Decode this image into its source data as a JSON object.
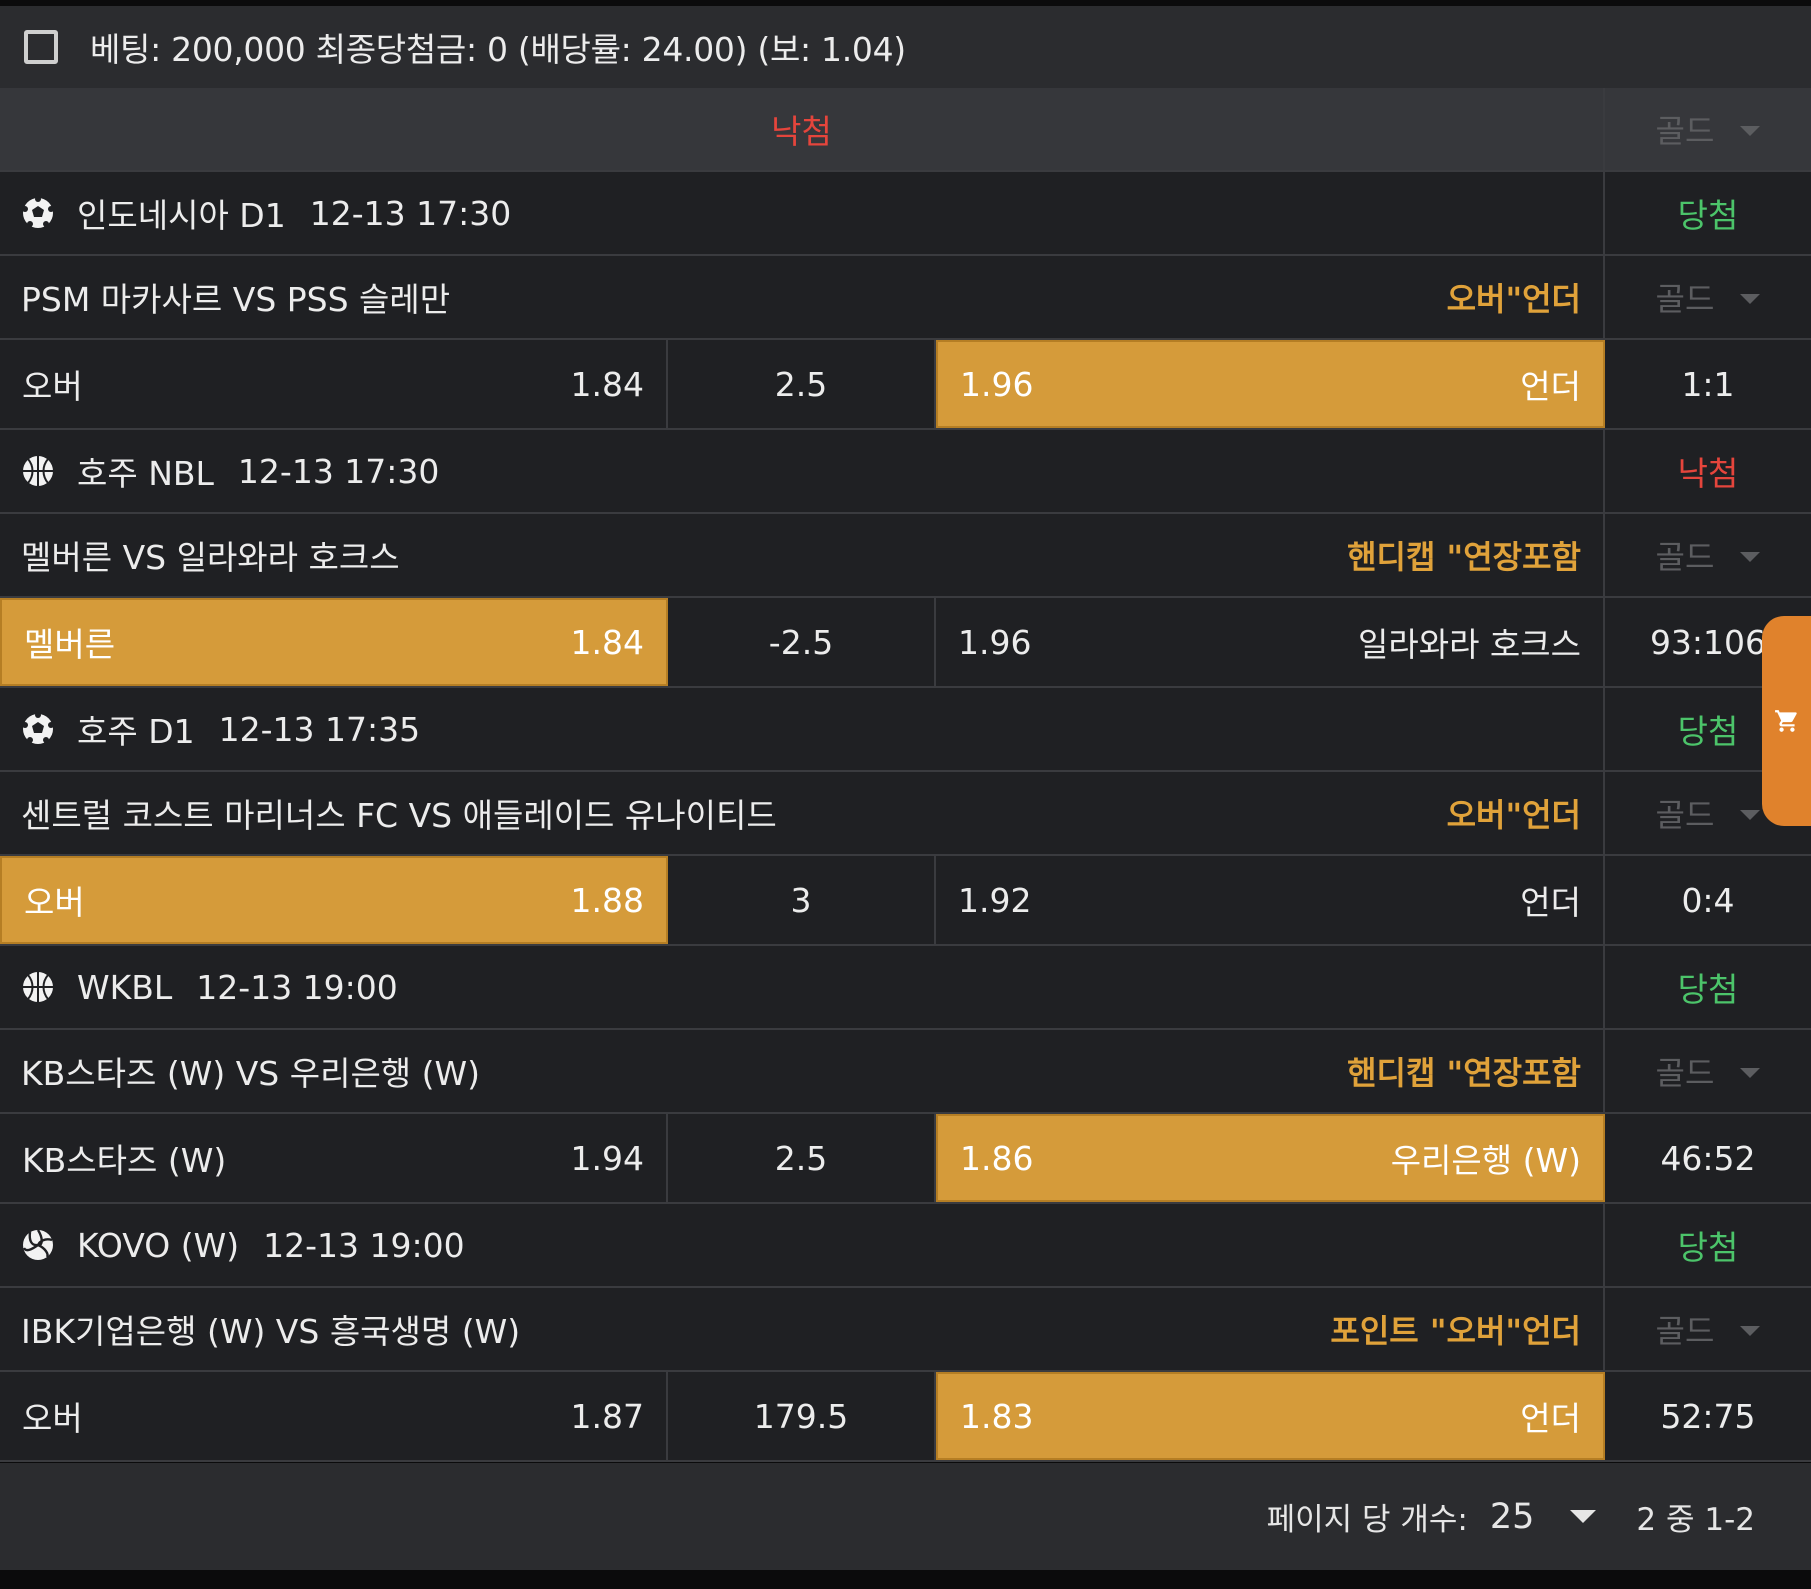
{
  "summary": "베팅: 200,000 최종당첨금: 0 (배당률: 24.00) (보: 1.04)",
  "header": {
    "status": "낙첨",
    "gold": "골드"
  },
  "games": [
    {
      "sport_icon": "soccer-icon",
      "league": "인도네시아 D1",
      "time": "12-13 17:30",
      "result": "당첨",
      "match": "PSM 마카사르 VS PSS 슬레만",
      "bet_type": "오버\"언더",
      "gold": "골드",
      "home_label": "오버",
      "home_odds": "1.84",
      "line": "2.5",
      "away_odds": "1.96",
      "away_label": "언더",
      "score": "1:1",
      "selected": "away"
    },
    {
      "sport_icon": "basketball-icon",
      "league": "호주 NBL",
      "time": "12-13 17:30",
      "result": "낙첨",
      "match": "멜버른 VS 일라와라 호크스",
      "bet_type": "핸디캡 \"연장포함",
      "gold": "골드",
      "home_label": "멜버른",
      "home_odds": "1.84",
      "line": "-2.5",
      "away_odds": "1.96",
      "away_label": "일라와라 호크스",
      "score": "93:106",
      "selected": "home"
    },
    {
      "sport_icon": "soccer-icon",
      "league": "호주 D1",
      "time": "12-13 17:35",
      "result": "당첨",
      "match": "센트럴 코스트 마리너스 FC VS 애들레이드 유나이티드",
      "bet_type": "오버\"언더",
      "gold": "골드",
      "home_label": "오버",
      "home_odds": "1.88",
      "line": "3",
      "away_odds": "1.92",
      "away_label": "언더",
      "score": "0:4",
      "selected": "home"
    },
    {
      "sport_icon": "basketball-icon",
      "league": "WKBL",
      "time": "12-13 19:00",
      "result": "당첨",
      "match": "KB스타즈 (W) VS 우리은행 (W)",
      "bet_type": "핸디캡 \"연장포함",
      "gold": "골드",
      "home_label": "KB스타즈 (W)",
      "home_odds": "1.94",
      "line": "2.5",
      "away_odds": "1.86",
      "away_label": "우리은행 (W)",
      "score": "46:52",
      "selected": "away"
    },
    {
      "sport_icon": "volleyball-icon",
      "league": "KOVO (W)",
      "time": "12-13 19:00",
      "result": "당첨",
      "match": "IBK기업은행 (W) VS 흥국생명 (W)",
      "bet_type": "포인트 \"오버\"언더",
      "gold": "골드",
      "home_label": "오버",
      "home_odds": "1.87",
      "line": "179.5",
      "away_odds": "1.83",
      "away_label": "언더",
      "score": "52:75",
      "selected": "away"
    }
  ],
  "pagination": {
    "label": "페이지 당 개수:",
    "value": "25",
    "range": "2 중 1-2"
  },
  "colors": {
    "win": "#4cc46a",
    "lose": "#e5453c",
    "accent": "#e0a23a",
    "selected": "#d59b3a"
  }
}
